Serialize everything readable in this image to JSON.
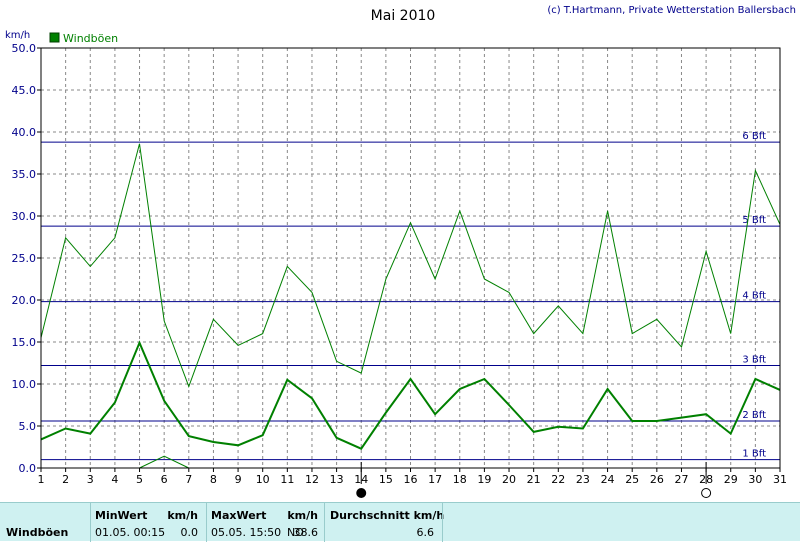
{
  "title": "Mai 2010",
  "credit": "(c) T.Hartmann, Private Wetterstation Ballersbach",
  "ylabel": "km/h",
  "legend": {
    "label": "Windböen",
    "color": "#008000"
  },
  "colors": {
    "gust_line": "#008000",
    "mean_line": "#008000",
    "grid": "#888888",
    "beaufort": "#00008b",
    "axis": "#000000"
  },
  "chart_data": {
    "type": "line",
    "title": "Mai 2010",
    "ylabel": "km/h",
    "xlabel": "",
    "ylim": [
      0,
      50
    ],
    "yticks": [
      "0.0",
      "5.0",
      "10.0",
      "15.0",
      "20.0",
      "25.0",
      "30.0",
      "35.0",
      "40.0",
      "45.0",
      "50.0"
    ],
    "categories": [
      "1",
      "2",
      "3",
      "4",
      "5",
      "6",
      "7",
      "8",
      "9",
      "10",
      "11",
      "12",
      "13",
      "14",
      "15",
      "16",
      "17",
      "18",
      "19",
      "20",
      "21",
      "22",
      "23",
      "24",
      "25",
      "26",
      "27",
      "28",
      "29",
      "30",
      "31"
    ],
    "x": [
      1,
      2,
      3,
      4,
      5,
      6,
      7,
      8,
      9,
      10,
      11,
      12,
      13,
      14,
      15,
      16,
      17,
      18,
      19,
      20,
      21,
      22,
      23,
      24,
      25,
      26,
      27,
      28,
      29,
      30,
      31
    ],
    "grid": true,
    "legend_position": "top-left",
    "series": [
      {
        "name": "Windböen",
        "values": [
          15.5,
          27.4,
          24.0,
          27.4,
          38.6,
          17.5,
          9.7,
          17.7,
          14.6,
          16.0,
          24.0,
          20.9,
          12.7,
          11.3,
          22.5,
          29.2,
          22.5,
          30.6,
          22.5,
          20.9,
          16.0,
          19.3,
          16.0,
          30.6,
          16.0,
          17.7,
          14.4,
          25.8,
          16.0,
          35.4,
          29.0
        ]
      },
      {
        "name": "",
        "values": [
          3.4,
          4.7,
          4.1,
          7.8,
          14.9,
          8.0,
          3.8,
          3.1,
          2.7,
          3.9,
          10.5,
          8.3,
          3.6,
          2.3,
          6.6,
          10.6,
          6.4,
          9.4,
          10.6,
          7.5,
          4.3,
          4.9,
          4.7,
          9.4,
          5.6,
          5.6,
          6.0,
          6.4,
          4.1,
          10.6,
          9.3
        ]
      },
      {
        "name": "",
        "x": [
          5,
          6,
          7
        ],
        "values": [
          0.0,
          1.4,
          0.0
        ]
      }
    ],
    "beaufort": [
      {
        "label": "1 Bft",
        "value": 1.0
      },
      {
        "label": "2 Bft",
        "value": 5.6
      },
      {
        "label": "3 Bft",
        "value": 12.2
      },
      {
        "label": "4 Bft",
        "value": 19.8
      },
      {
        "label": "5 Bft",
        "value": 28.8
      },
      {
        "label": "6 Bft",
        "value": 38.8
      }
    ],
    "moon_phases": [
      {
        "day": 14,
        "phase": "new-moon"
      },
      {
        "day": 28,
        "phase": "full-moon"
      }
    ]
  },
  "stats": {
    "row_label": "Windböen",
    "min_header": "MinWert",
    "min_unit": "km/h",
    "min_time": "01.05.  00:15",
    "min_value": "0.0",
    "max_header": "MaxWert",
    "max_unit": "km/h",
    "max_time": "05.05.  15:50",
    "max_dir": "NO",
    "max_value": "38.6",
    "avg_header": "Durchschnitt km/h",
    "avg_value": "6.6"
  }
}
